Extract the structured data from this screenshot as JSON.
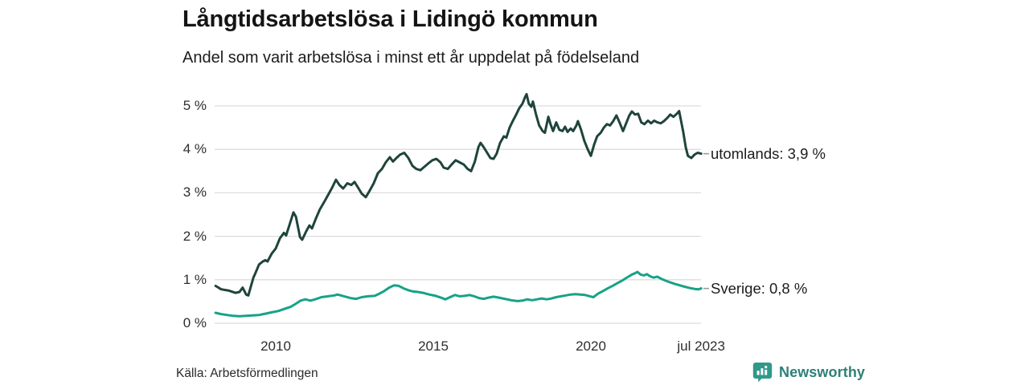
{
  "chart_data": {
    "type": "line",
    "title": "Långtidsarbetslösa i Lidingö kommun",
    "subtitle": "Andel som varit arbetslösa i minst ett år uppdelat på födelseland",
    "source": "Källa: Arbetsförmedlingen",
    "grid": "horizontal-on",
    "legend_position": "end-of-line-labels",
    "colors": {
      "utomlands_line": "#1f443c",
      "sverige_line": "#17a287",
      "gridline": "#dcdcdc",
      "connector": "#9a9a9a"
    },
    "y_axis": {
      "unit": "%",
      "ylim": [
        0,
        5.5
      ],
      "ticks": [
        {
          "label": "0 %",
          "value": 0
        },
        {
          "label": "1 %",
          "value": 1
        },
        {
          "label": "2 %",
          "value": 2
        },
        {
          "label": "3 %",
          "value": 3
        },
        {
          "label": "4 %",
          "value": 4
        },
        {
          "label": "5 %",
          "value": 5
        }
      ]
    },
    "x_axis": {
      "range_years": [
        2008.09,
        2023.5
      ],
      "ticks": [
        {
          "label": "2010",
          "year": 2010
        },
        {
          "label": "2015",
          "year": 2015
        },
        {
          "label": "2020",
          "year": 2020
        },
        {
          "label": "jul 2023",
          "year": 2023.5
        }
      ]
    },
    "series": [
      {
        "name": "utomlands",
        "label": "utomlands: 3,9 %",
        "latest_value": "3,9 %",
        "color": "#1f443c",
        "points": [
          [
            2008.09,
            0.86
          ],
          [
            2008.27,
            0.78
          ],
          [
            2008.52,
            0.75
          ],
          [
            2008.72,
            0.7
          ],
          [
            2008.85,
            0.72
          ],
          [
            2008.95,
            0.82
          ],
          [
            2009.06,
            0.66
          ],
          [
            2009.13,
            0.64
          ],
          [
            2009.29,
            1.05
          ],
          [
            2009.36,
            1.16
          ],
          [
            2009.47,
            1.35
          ],
          [
            2009.59,
            1.42
          ],
          [
            2009.67,
            1.45
          ],
          [
            2009.74,
            1.42
          ],
          [
            2009.87,
            1.6
          ],
          [
            2010.0,
            1.72
          ],
          [
            2010.13,
            1.95
          ],
          [
            2010.26,
            2.08
          ],
          [
            2010.33,
            2.02
          ],
          [
            2010.43,
            2.25
          ],
          [
            2010.56,
            2.55
          ],
          [
            2010.64,
            2.45
          ],
          [
            2010.77,
            1.98
          ],
          [
            2010.84,
            1.92
          ],
          [
            2010.97,
            2.12
          ],
          [
            2011.07,
            2.25
          ],
          [
            2011.15,
            2.18
          ],
          [
            2011.28,
            2.42
          ],
          [
            2011.4,
            2.62
          ],
          [
            2011.53,
            2.78
          ],
          [
            2011.66,
            2.95
          ],
          [
            2011.79,
            3.12
          ],
          [
            2011.91,
            3.3
          ],
          [
            2012.02,
            3.18
          ],
          [
            2012.14,
            3.1
          ],
          [
            2012.27,
            3.22
          ],
          [
            2012.4,
            3.18
          ],
          [
            2012.5,
            3.25
          ],
          [
            2012.63,
            3.1
          ],
          [
            2012.73,
            2.98
          ],
          [
            2012.86,
            2.9
          ],
          [
            2012.98,
            3.05
          ],
          [
            2013.11,
            3.22
          ],
          [
            2013.24,
            3.45
          ],
          [
            2013.37,
            3.55
          ],
          [
            2013.49,
            3.7
          ],
          [
            2013.62,
            3.82
          ],
          [
            2013.72,
            3.72
          ],
          [
            2013.83,
            3.8
          ],
          [
            2013.95,
            3.88
          ],
          [
            2014.08,
            3.92
          ],
          [
            2014.21,
            3.8
          ],
          [
            2014.34,
            3.62
          ],
          [
            2014.46,
            3.55
          ],
          [
            2014.59,
            3.52
          ],
          [
            2014.72,
            3.6
          ],
          [
            2014.85,
            3.68
          ],
          [
            2014.97,
            3.75
          ],
          [
            2015.1,
            3.78
          ],
          [
            2015.23,
            3.7
          ],
          [
            2015.33,
            3.58
          ],
          [
            2015.46,
            3.55
          ],
          [
            2015.58,
            3.65
          ],
          [
            2015.71,
            3.75
          ],
          [
            2015.84,
            3.7
          ],
          [
            2015.97,
            3.65
          ],
          [
            2016.09,
            3.55
          ],
          [
            2016.2,
            3.5
          ],
          [
            2016.32,
            3.72
          ],
          [
            2016.43,
            4.05
          ],
          [
            2016.5,
            4.15
          ],
          [
            2016.6,
            4.05
          ],
          [
            2016.71,
            3.92
          ],
          [
            2016.81,
            3.8
          ],
          [
            2016.91,
            3.78
          ],
          [
            2017.01,
            3.9
          ],
          [
            2017.12,
            4.15
          ],
          [
            2017.24,
            4.3
          ],
          [
            2017.32,
            4.27
          ],
          [
            2017.42,
            4.5
          ],
          [
            2017.52,
            4.65
          ],
          [
            2017.63,
            4.8
          ],
          [
            2017.73,
            4.95
          ],
          [
            2017.83,
            5.05
          ],
          [
            2017.91,
            5.2
          ],
          [
            2017.96,
            5.27
          ],
          [
            2018.03,
            5.05
          ],
          [
            2018.11,
            4.98
          ],
          [
            2018.16,
            5.1
          ],
          [
            2018.26,
            4.8
          ],
          [
            2018.36,
            4.55
          ],
          [
            2018.47,
            4.42
          ],
          [
            2018.54,
            4.38
          ],
          [
            2018.65,
            4.75
          ],
          [
            2018.72,
            4.58
          ],
          [
            2018.8,
            4.42
          ],
          [
            2018.9,
            4.62
          ],
          [
            2019.0,
            4.45
          ],
          [
            2019.1,
            4.42
          ],
          [
            2019.18,
            4.52
          ],
          [
            2019.26,
            4.4
          ],
          [
            2019.36,
            4.48
          ],
          [
            2019.44,
            4.42
          ],
          [
            2019.54,
            4.55
          ],
          [
            2019.59,
            4.65
          ],
          [
            2019.69,
            4.45
          ],
          [
            2019.79,
            4.2
          ],
          [
            2019.9,
            4.0
          ],
          [
            2020.0,
            3.85
          ],
          [
            2020.1,
            4.1
          ],
          [
            2020.2,
            4.3
          ],
          [
            2020.31,
            4.38
          ],
          [
            2020.41,
            4.5
          ],
          [
            2020.51,
            4.58
          ],
          [
            2020.61,
            4.55
          ],
          [
            2020.71,
            4.65
          ],
          [
            2020.81,
            4.78
          ],
          [
            2020.92,
            4.6
          ],
          [
            2021.02,
            4.42
          ],
          [
            2021.12,
            4.6
          ],
          [
            2021.22,
            4.78
          ],
          [
            2021.3,
            4.87
          ],
          [
            2021.4,
            4.8
          ],
          [
            2021.5,
            4.82
          ],
          [
            2021.6,
            4.62
          ],
          [
            2021.7,
            4.58
          ],
          [
            2021.81,
            4.66
          ],
          [
            2021.91,
            4.6
          ],
          [
            2022.01,
            4.66
          ],
          [
            2022.11,
            4.62
          ],
          [
            2022.22,
            4.6
          ],
          [
            2022.32,
            4.65
          ],
          [
            2022.42,
            4.72
          ],
          [
            2022.52,
            4.8
          ],
          [
            2022.62,
            4.75
          ],
          [
            2022.73,
            4.82
          ],
          [
            2022.8,
            4.88
          ],
          [
            2022.93,
            4.4
          ],
          [
            2023.01,
            4.05
          ],
          [
            2023.08,
            3.85
          ],
          [
            2023.19,
            3.8
          ],
          [
            2023.29,
            3.88
          ],
          [
            2023.39,
            3.92
          ],
          [
            2023.5,
            3.9
          ]
        ]
      },
      {
        "name": "Sverige",
        "label": "Sverige: 0,8 %",
        "latest_value": "0,8 %",
        "color": "#17a287",
        "points": [
          [
            2008.09,
            0.24
          ],
          [
            2008.27,
            0.21
          ],
          [
            2008.45,
            0.19
          ],
          [
            2008.65,
            0.17
          ],
          [
            2008.85,
            0.16
          ],
          [
            2009.06,
            0.17
          ],
          [
            2009.26,
            0.18
          ],
          [
            2009.47,
            0.19
          ],
          [
            2009.67,
            0.22
          ],
          [
            2009.87,
            0.25
          ],
          [
            2010.08,
            0.28
          ],
          [
            2010.28,
            0.33
          ],
          [
            2010.48,
            0.38
          ],
          [
            2010.64,
            0.45
          ],
          [
            2010.79,
            0.52
          ],
          [
            2010.94,
            0.55
          ],
          [
            2011.1,
            0.52
          ],
          [
            2011.25,
            0.55
          ],
          [
            2011.45,
            0.6
          ],
          [
            2011.66,
            0.62
          ],
          [
            2011.86,
            0.64
          ],
          [
            2011.96,
            0.66
          ],
          [
            2012.17,
            0.62
          ],
          [
            2012.37,
            0.58
          ],
          [
            2012.55,
            0.56
          ],
          [
            2012.73,
            0.6
          ],
          [
            2012.93,
            0.62
          ],
          [
            2013.14,
            0.63
          ],
          [
            2013.29,
            0.68
          ],
          [
            2013.44,
            0.74
          ],
          [
            2013.6,
            0.82
          ],
          [
            2013.75,
            0.87
          ],
          [
            2013.9,
            0.86
          ],
          [
            2014.06,
            0.8
          ],
          [
            2014.21,
            0.76
          ],
          [
            2014.36,
            0.73
          ],
          [
            2014.51,
            0.72
          ],
          [
            2014.67,
            0.7
          ],
          [
            2014.87,
            0.66
          ],
          [
            2015.08,
            0.63
          ],
          [
            2015.28,
            0.58
          ],
          [
            2015.38,
            0.55
          ],
          [
            2015.53,
            0.6
          ],
          [
            2015.69,
            0.65
          ],
          [
            2015.84,
            0.62
          ],
          [
            2015.99,
            0.63
          ],
          [
            2016.15,
            0.65
          ],
          [
            2016.3,
            0.62
          ],
          [
            2016.45,
            0.58
          ],
          [
            2016.6,
            0.56
          ],
          [
            2016.76,
            0.59
          ],
          [
            2016.91,
            0.61
          ],
          [
            2017.07,
            0.59
          ],
          [
            2017.27,
            0.56
          ],
          [
            2017.47,
            0.53
          ],
          [
            2017.68,
            0.51
          ],
          [
            2017.83,
            0.52
          ],
          [
            2017.98,
            0.55
          ],
          [
            2018.14,
            0.53
          ],
          [
            2018.29,
            0.55
          ],
          [
            2018.44,
            0.57
          ],
          [
            2018.6,
            0.55
          ],
          [
            2018.75,
            0.57
          ],
          [
            2018.9,
            0.6
          ],
          [
            2019.05,
            0.62
          ],
          [
            2019.21,
            0.64
          ],
          [
            2019.36,
            0.66
          ],
          [
            2019.51,
            0.67
          ],
          [
            2019.67,
            0.66
          ],
          [
            2019.82,
            0.65
          ],
          [
            2019.97,
            0.62
          ],
          [
            2020.08,
            0.6
          ],
          [
            2020.23,
            0.68
          ],
          [
            2020.38,
            0.74
          ],
          [
            2020.53,
            0.8
          ],
          [
            2020.69,
            0.86
          ],
          [
            2020.84,
            0.92
          ],
          [
            2020.99,
            0.98
          ],
          [
            2021.14,
            1.05
          ],
          [
            2021.3,
            1.12
          ],
          [
            2021.4,
            1.15
          ],
          [
            2021.48,
            1.18
          ],
          [
            2021.58,
            1.12
          ],
          [
            2021.68,
            1.1
          ],
          [
            2021.78,
            1.13
          ],
          [
            2021.88,
            1.08
          ],
          [
            2021.99,
            1.05
          ],
          [
            2022.11,
            1.07
          ],
          [
            2022.24,
            1.02
          ],
          [
            2022.37,
            0.98
          ],
          [
            2022.52,
            0.94
          ],
          [
            2022.68,
            0.9
          ],
          [
            2022.83,
            0.87
          ],
          [
            2022.98,
            0.84
          ],
          [
            2023.14,
            0.81
          ],
          [
            2023.29,
            0.79
          ],
          [
            2023.42,
            0.78
          ],
          [
            2023.5,
            0.8
          ]
        ]
      }
    ]
  },
  "footer": {
    "brand": "Newsworthy"
  }
}
